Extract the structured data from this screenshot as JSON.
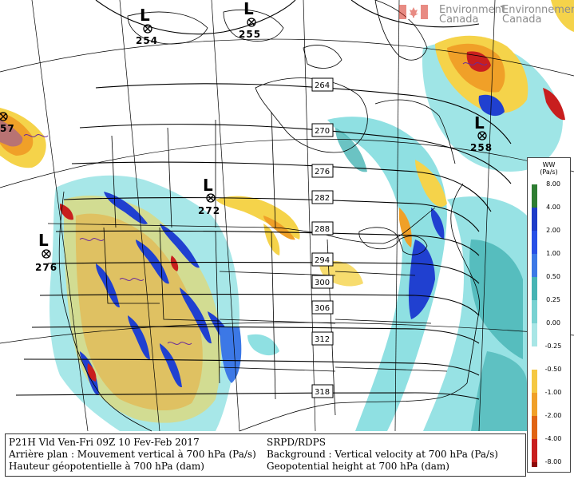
{
  "header": {
    "org_en": "Environment",
    "org_en_2": "Canada",
    "org_fr": "Environnement",
    "org_fr_2": "Canada"
  },
  "pressure_systems": [
    {
      "letter": "L",
      "value": "254"
    },
    {
      "letter": "L",
      "value": "255"
    },
    {
      "letter": "L",
      "value": "258"
    },
    {
      "letter": "L",
      "value": "272"
    },
    {
      "letter": "L",
      "value": "276"
    },
    {
      "letter": "",
      "value": "57"
    }
  ],
  "contour_labels": [
    "264",
    "270",
    "276",
    "282",
    "288",
    "294",
    "300",
    "306",
    "312",
    "318"
  ],
  "legend": {
    "title_1": "WW",
    "title_2": "(Pa/s)",
    "levels": [
      "8.00",
      "4.00",
      "2.00",
      "1.00",
      "0.50",
      "0.25",
      "0.00",
      "-0.25",
      "-0.50",
      "-1.00",
      "-2.00",
      "-4.00",
      "-8.00"
    ],
    "colors": [
      "#2e7d32",
      "#1e3cc8",
      "#2850e6",
      "#3c78e6",
      "#46b4b4",
      "#78d2d2",
      "#a8e6e6",
      "#ffffff",
      "#f5c842",
      "#f0a028",
      "#e06414",
      "#c81e1e",
      "#8c0a0a"
    ]
  },
  "caption": {
    "line1_left": "P21H Vld Ven-Fri 09Z 10 Fev-Feb 2017",
    "line2_left": "Arrière plan : Mouvement vertical à 700 hPa (Pa/s)",
    "line3_left": "Hauteur géopotentielle à 700 hPa (dam)",
    "line1_right": "SRPD/RDPS",
    "line2_right": "Background : Vertical velocity at 700 hPa (Pa/s)",
    "line3_right": "Geopotential height at 700 hPa (dam)"
  },
  "colors": {
    "blue_ascent": "#2040d0",
    "cyan_light": "#5fd3d6",
    "orange": "#f0a028",
    "yellow": "#f5d34a",
    "red": "#c81e1e",
    "purple_contour": "#6a2a9a"
  }
}
